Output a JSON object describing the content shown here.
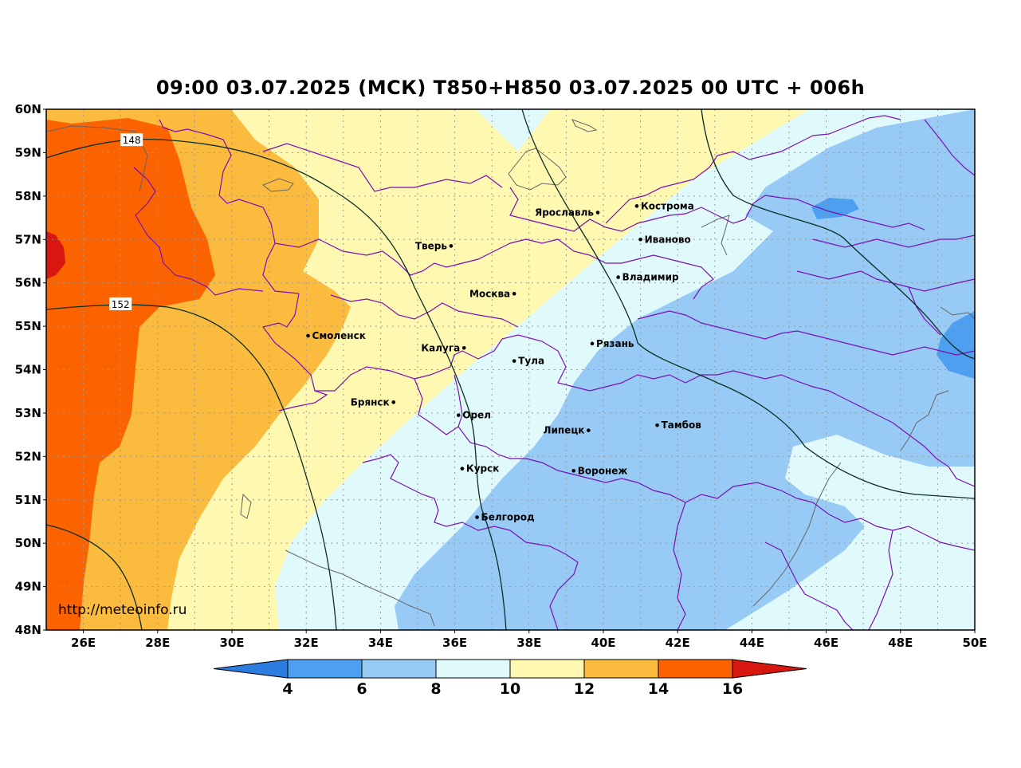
{
  "title": "09:00 03.07.2025 (МСК) T850+H850 03.07.2025 00 UTC + 006h",
  "watermark": "http://meteoinfo.ru",
  "lat_labels": [
    "60N",
    "59N",
    "58N",
    "57N",
    "56N",
    "55N",
    "54N",
    "53N",
    "52N",
    "51N",
    "50N",
    "49N",
    "48N"
  ],
  "lon_labels": [
    "26E",
    "28E",
    "30E",
    "32E",
    "34E",
    "36E",
    "38E",
    "40E",
    "42E",
    "44E",
    "46E",
    "48E",
    "50E"
  ],
  "cities": [
    {
      "name": "Кострома",
      "lon": 40.9,
      "lat": 57.77,
      "side": "right"
    },
    {
      "name": "Ярославль",
      "lon": 39.85,
      "lat": 57.62,
      "side": "left"
    },
    {
      "name": "Иваново",
      "lon": 41.0,
      "lat": 57.0,
      "side": "right"
    },
    {
      "name": "Тверь",
      "lon": 35.9,
      "lat": 56.85,
      "side": "left"
    },
    {
      "name": "Владимир",
      "lon": 40.4,
      "lat": 56.13,
      "side": "right"
    },
    {
      "name": "Москва",
      "lon": 37.6,
      "lat": 55.75,
      "side": "left"
    },
    {
      "name": "Смоленск",
      "lon": 32.05,
      "lat": 54.78,
      "side": "right"
    },
    {
      "name": "Рязань",
      "lon": 39.7,
      "lat": 54.6,
      "side": "right"
    },
    {
      "name": "Калуга",
      "lon": 36.25,
      "lat": 54.5,
      "side": "left"
    },
    {
      "name": "Тула",
      "lon": 37.6,
      "lat": 54.2,
      "side": "right"
    },
    {
      "name": "Брянск",
      "lon": 34.35,
      "lat": 53.25,
      "side": "left"
    },
    {
      "name": "Орел",
      "lon": 36.1,
      "lat": 52.95,
      "side": "right"
    },
    {
      "name": "Липецк",
      "lon": 39.6,
      "lat": 52.6,
      "side": "left"
    },
    {
      "name": "Тамбов",
      "lon": 41.45,
      "lat": 52.72,
      "side": "right"
    },
    {
      "name": "Курск",
      "lon": 36.2,
      "lat": 51.72,
      "side": "right"
    },
    {
      "name": "Воронеж",
      "lon": 39.2,
      "lat": 51.67,
      "side": "right"
    },
    {
      "name": "Белгород",
      "lon": 36.6,
      "lat": 50.6,
      "side": "right"
    }
  ],
  "contour_labels": [
    {
      "text": "148",
      "lon": 27.3,
      "lat": 59.28
    },
    {
      "text": "152",
      "lon": 27.0,
      "lat": 55.5
    }
  ],
  "colorbar": {
    "ticks": [
      "4",
      "6",
      "8",
      "10",
      "12",
      "14",
      "16"
    ],
    "colors": [
      "#2c7de0",
      "#4e9ff0",
      "#97cbf5",
      "#e0fafc",
      "#fff8b0",
      "#fbbb3e",
      "#fb6200",
      "#d81710"
    ]
  },
  "colors": {
    "c6": "#4e9ff0",
    "c8": "#97cbf5",
    "c10": "#e0fafc",
    "c12": "#fff8b0",
    "c14": "#fbbb3e",
    "c16": "#fb6200",
    "c18": "#d81710",
    "border": "#7a10b5",
    "isohypse": "#0b2e25"
  }
}
